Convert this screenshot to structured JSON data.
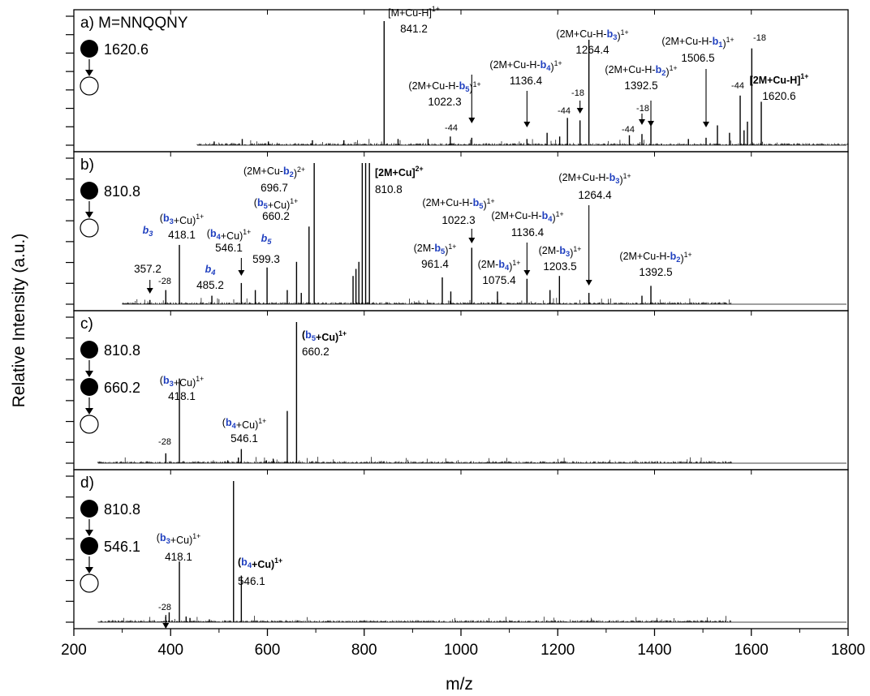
{
  "chart_data": {
    "type": "mass-spectrum",
    "xlabel": "m/z",
    "ylabel": "Relative Intensity (a.u.)",
    "xlim": [
      200,
      1800
    ],
    "xticks": [
      200,
      400,
      600,
      800,
      1000,
      1200,
      1400,
      1600,
      1800
    ],
    "grid": false,
    "highlight_color": "#1f3fbf",
    "panels": [
      {
        "label": "a) M=NNQQNY",
        "scheme": [
          "1620.6"
        ],
        "noise_range": [
          455,
          1800
        ],
        "peaks": [
          {
            "mz": 841.2,
            "rel": 1.0
          },
          {
            "mz": 1264.4,
            "rel": 0.85
          },
          {
            "mz": 1601.0,
            "rel": 0.78
          },
          {
            "mz": 1620.6,
            "rel": 0.35
          },
          {
            "mz": 1577.0,
            "rel": 0.4
          },
          {
            "mz": 1246.0,
            "rel": 0.2
          },
          {
            "mz": 1220.0,
            "rel": 0.22
          },
          {
            "mz": 1392.5,
            "rel": 0.16
          },
          {
            "mz": 1374.0,
            "rel": 0.09
          },
          {
            "mz": 1506.5,
            "rel": 0.06
          },
          {
            "mz": 1136.4,
            "rel": 0.05
          },
          {
            "mz": 1022.3,
            "rel": 0.06
          },
          {
            "mz": 978.0,
            "rel": 0.07
          },
          {
            "mz": 1178.0,
            "rel": 0.1
          },
          {
            "mz": 1204.0,
            "rel": 0.07
          },
          {
            "mz": 1530.0,
            "rel": 0.16
          },
          {
            "mz": 1555.0,
            "rel": 0.1
          },
          {
            "mz": 1592.0,
            "rel": 0.19
          },
          {
            "mz": 1585.0,
            "rel": 0.12
          },
          {
            "mz": 1348.0,
            "rel": 0.08
          },
          {
            "mz": 1470.0,
            "rel": 0.05
          },
          {
            "mz": 932.0,
            "rel": 0.05
          },
          {
            "mz": 870.0,
            "rel": 0.05
          },
          {
            "mz": 758.0,
            "rel": 0.04
          },
          {
            "mz": 693.0,
            "rel": 0.04
          },
          {
            "mz": 602.0,
            "rel": 0.03
          },
          {
            "mz": 548.0,
            "rel": 0.05
          },
          {
            "mz": 490.0,
            "rel": 0.03
          }
        ],
        "annotations": [
          {
            "label": "[M+Cu-H]¹⁺",
            "value": "841.2",
            "at": 841.2
          },
          {
            "label": "(2M+Cu-H-b₅)¹⁺",
            "value": "1022.3",
            "at": 1022.3
          },
          {
            "label": "(2M+Cu-H-b₄)¹⁺",
            "value": "1136.4",
            "at": 1136.4
          },
          {
            "label": "(2M+Cu-H-b₃)¹⁺",
            "value": "1264.4",
            "at": 1264.4
          },
          {
            "label": "(2M+Cu-H-b₂)¹⁺",
            "value": "1392.5",
            "at": 1392.5
          },
          {
            "label": "(2M+Cu-H-b₁)¹⁺",
            "value": "1506.5",
            "at": 1506.5
          },
          {
            "label": "[2M+Cu-H]¹⁺",
            "value": "1620.6",
            "at": 1620.6
          },
          {
            "label": "-44",
            "value": "",
            "at": 978
          },
          {
            "label": "-44",
            "value": "",
            "at": 1220
          },
          {
            "label": "-18",
            "value": "",
            "at": 1246
          },
          {
            "label": "-44",
            "value": "",
            "at": 1348
          },
          {
            "label": "-18",
            "value": "",
            "at": 1374
          },
          {
            "label": "-44",
            "value": "",
            "at": 1577
          },
          {
            "label": "-18",
            "value": "",
            "at": 1601
          }
        ]
      },
      {
        "label": "b)",
        "scheme": [
          "810.8"
        ],
        "noise_range": [
          300,
          1560
        ],
        "peaks": [
          {
            "mz": 810.8,
            "rel": 1.0
          },
          {
            "mz": 803.0,
            "rel": 1.0
          },
          {
            "mz": 796.0,
            "rel": 1.0
          },
          {
            "mz": 789.0,
            "rel": 0.3
          },
          {
            "mz": 783.0,
            "rel": 0.25
          },
          {
            "mz": 777.0,
            "rel": 0.2
          },
          {
            "mz": 696.7,
            "rel": 1.0
          },
          {
            "mz": 686.0,
            "rel": 0.55
          },
          {
            "mz": 670.0,
            "rel": 0.08
          },
          {
            "mz": 660.2,
            "rel": 0.3
          },
          {
            "mz": 641.0,
            "rel": 0.1
          },
          {
            "mz": 599.3,
            "rel": 0.26
          },
          {
            "mz": 575.0,
            "rel": 0.1
          },
          {
            "mz": 546.1,
            "rel": 0.15
          },
          {
            "mz": 485.2,
            "rel": 0.06
          },
          {
            "mz": 418.1,
            "rel": 0.42
          },
          {
            "mz": 390.0,
            "rel": 0.1
          },
          {
            "mz": 357.2,
            "rel": 0.03
          },
          {
            "mz": 961.4,
            "rel": 0.19
          },
          {
            "mz": 979.0,
            "rel": 0.09
          },
          {
            "mz": 1022.3,
            "rel": 0.4
          },
          {
            "mz": 1075.4,
            "rel": 0.09
          },
          {
            "mz": 1136.4,
            "rel": 0.18
          },
          {
            "mz": 1184.0,
            "rel": 0.1
          },
          {
            "mz": 1203.5,
            "rel": 0.2
          },
          {
            "mz": 1264.4,
            "rel": 0.08
          },
          {
            "mz": 1374.0,
            "rel": 0.06
          },
          {
            "mz": 1392.5,
            "rel": 0.13
          }
        ],
        "annotations": [
          {
            "label": "b₃",
            "value": "357.2",
            "at": 357.2
          },
          {
            "label": "-28",
            "value": "",
            "at": 390
          },
          {
            "label": "(b₃+Cu)¹⁺",
            "value": "418.1",
            "at": 418.1
          },
          {
            "label": "b₄",
            "value": "485.2",
            "at": 485.2
          },
          {
            "label": "(b₄+Cu)¹⁺",
            "value": "546.1",
            "at": 546.1
          },
          {
            "label": "b₅",
            "value": "599.3",
            "at": 599.3
          },
          {
            "label": "(b₅+Cu)¹⁺",
            "value": "660.2",
            "at": 660.2
          },
          {
            "label": "(2M+Cu-b₂)²⁺",
            "value": "696.7",
            "at": 696.7
          },
          {
            "label": "[2M+Cu]²⁺",
            "value": "810.8",
            "at": 810.8
          },
          {
            "label": "(2M-b₅)¹⁺",
            "value": "961.4",
            "at": 961.4
          },
          {
            "label": "(2M+Cu-H-b₅)¹⁺",
            "value": "1022.3",
            "at": 1022.3
          },
          {
            "label": "(2M-b₄)¹⁺",
            "value": "1075.4",
            "at": 1075.4
          },
          {
            "label": "(2M+Cu-H-b₄)¹⁺",
            "value": "1136.4",
            "at": 1136.4
          },
          {
            "label": "(2M-b₃)¹⁺",
            "value": "1203.5",
            "at": 1203.5
          },
          {
            "label": "(2M+Cu-H-b₃)¹⁺",
            "value": "1264.4",
            "at": 1264.4
          },
          {
            "label": "(2M+Cu-H-b₂)¹⁺",
            "value": "1392.5",
            "at": 1392.5
          }
        ]
      },
      {
        "label": "c)",
        "scheme": [
          "810.8",
          "660.2"
        ],
        "noise_range": [
          250,
          1560
        ],
        "peaks": [
          {
            "mz": 660.2,
            "rel": 1.0
          },
          {
            "mz": 641.0,
            "rel": 0.37
          },
          {
            "mz": 418.1,
            "rel": 0.6
          },
          {
            "mz": 390.0,
            "rel": 0.07
          },
          {
            "mz": 546.1,
            "rel": 0.1
          },
          {
            "mz": 540.0,
            "rel": 0.04
          },
          {
            "mz": 612.0,
            "rel": 0.03
          },
          {
            "mz": 598.0,
            "rel": 0.02
          },
          {
            "mz": 518.0,
            "rel": 0.02
          }
        ],
        "annotations": [
          {
            "label": "-28",
            "value": "",
            "at": 390
          },
          {
            "label": "(b₃+Cu)¹⁺",
            "value": "418.1",
            "at": 418.1
          },
          {
            "label": "(b₄+Cu)¹⁺",
            "value": "546.1",
            "at": 546.1
          },
          {
            "label": "(b₅+Cu)¹⁺",
            "value": "660.2",
            "at": 660.2
          }
        ]
      },
      {
        "label": "d)",
        "scheme": [
          "810.8",
          "546.1"
        ],
        "noise_range": [
          250,
          1560
        ],
        "peaks": [
          {
            "mz": 530.0,
            "rel": 1.0
          },
          {
            "mz": 546.1,
            "rel": 0.33
          },
          {
            "mz": 418.1,
            "rel": 0.43
          },
          {
            "mz": 390.0,
            "rel": 0.04
          },
          {
            "mz": 397.0,
            "rel": 0.07
          },
          {
            "mz": 432.0,
            "rel": 0.04
          },
          {
            "mz": 440.0,
            "rel": 0.03
          },
          {
            "mz": 480.0,
            "rel": 0.02
          }
        ],
        "annotations": [
          {
            "label": "-28",
            "value": "",
            "at": 390
          },
          {
            "label": "(b₃+Cu)¹⁺",
            "value": "418.1",
            "at": 418.1
          },
          {
            "label": "(b₄+Cu)¹⁺",
            "value": "546.1",
            "at": 546.1
          }
        ]
      }
    ]
  }
}
